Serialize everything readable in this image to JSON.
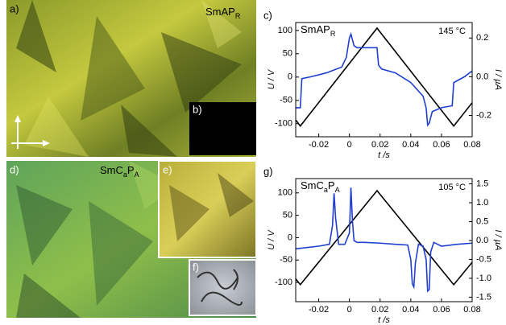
{
  "panels": {
    "a": {
      "label": "a)",
      "sample": [
        "SmAP",
        "R"
      ]
    },
    "b": {
      "label": "b)"
    },
    "d": {
      "label": "d)",
      "sample": [
        "SmC",
        "a",
        "P",
        "A"
      ]
    },
    "e": {
      "label": "e)"
    },
    "f": {
      "label": "f)"
    }
  },
  "chart_data": [
    {
      "type": "line",
      "panel": "c)",
      "sample": [
        "SmAP",
        "R"
      ],
      "annotation": "145 °C",
      "xlabel": "t /s",
      "ylabel": "U / V",
      "y2label": "I / µA",
      "xlim": [
        -0.035,
        0.08
      ],
      "xticks": [
        -0.02,
        0,
        0.02,
        0.04,
        0.06,
        0.08
      ],
      "ylim": [
        -128,
        117
      ],
      "yticks": [
        -100,
        -50,
        0,
        50,
        100
      ],
      "y2lim": [
        -0.31,
        0.28
      ],
      "y2ticks": [
        -0.2,
        {
          "value": 0,
          "label": "0.0"
        },
        0.2
      ],
      "series": [
        {
          "color": "#000000",
          "axis": "y",
          "x": [
            -0.035,
            -0.032,
            0.018,
            0.068,
            0.08
          ],
          "values": [
            -92,
            -105,
            105,
            -105,
            -55
          ]
        },
        {
          "color": "#1f3fd0",
          "axis": "y2",
          "x": [
            -0.035,
            -0.032,
            -0.031,
            -0.025,
            -0.015,
            -0.005,
            -0.002,
            0.0,
            0.001,
            0.003,
            0.005,
            0.01,
            0.018,
            0.019,
            0.021,
            0.03,
            0.04,
            0.048,
            0.05,
            0.051,
            0.052,
            0.054,
            0.06,
            0.067,
            0.068,
            0.075,
            0.08
          ],
          "values": [
            -0.16,
            -0.16,
            -0.01,
            0.0,
            0.02,
            0.05,
            0.1,
            0.2,
            0.22,
            0.16,
            0.15,
            0.15,
            0.15,
            0.06,
            0.04,
            0.02,
            -0.03,
            -0.1,
            -0.16,
            -0.25,
            -0.24,
            -0.18,
            -0.16,
            -0.15,
            -0.03,
            0.0,
            0.03
          ]
        }
      ]
    },
    {
      "type": "line",
      "panel": "g)",
      "sample": [
        "SmC",
        "a",
        "P",
        "A"
      ],
      "annotation": "105 °C",
      "xlabel": "t /s",
      "ylabel": "U / V",
      "y2label": "I / µA",
      "xlim": [
        -0.035,
        0.08
      ],
      "xticks": [
        -0.02,
        0,
        0.02,
        0.04,
        0.06,
        0.08
      ],
      "ylim": [
        -143,
        132
      ],
      "yticks": [
        -100,
        -50,
        0,
        50,
        100
      ],
      "y2lim": [
        -1.62,
        1.64
      ],
      "y2ticks": [
        -1.5,
        {
          "value": -1,
          "label": "-1.0"
        },
        -0.5,
        {
          "value": 0,
          "label": "0.0"
        },
        0.5,
        {
          "value": 1,
          "label": "1.0"
        },
        1.5
      ],
      "series": [
        {
          "color": "#000000",
          "axis": "y",
          "x": [
            -0.035,
            -0.032,
            0.018,
            0.068,
            0.08
          ],
          "values": [
            -92,
            -105,
            105,
            -105,
            -55
          ]
        },
        {
          "color": "#1f3fd0",
          "axis": "y2",
          "x": [
            -0.035,
            -0.02,
            -0.013,
            -0.011,
            -0.01,
            -0.009,
            -0.007,
            -0.003,
            0.0,
            0.001,
            0.002,
            0.003,
            0.005,
            0.01,
            0.02,
            0.03,
            0.038,
            0.04,
            0.041,
            0.042,
            0.043,
            0.045,
            0.048,
            0.05,
            0.051,
            0.052,
            0.053,
            0.055,
            0.06,
            0.07,
            0.08
          ],
          "values": [
            -0.22,
            -0.15,
            -0.1,
            0.4,
            1.25,
            0.6,
            -0.1,
            -0.1,
            0.2,
            1.4,
            0.5,
            0.0,
            -0.05,
            -0.05,
            -0.07,
            -0.1,
            -0.12,
            -0.5,
            -1.15,
            -1.23,
            -0.6,
            -0.1,
            -0.15,
            -0.5,
            -1.34,
            -1.3,
            -0.3,
            -0.05,
            -0.15,
            -0.1,
            -0.07
          ]
        }
      ]
    }
  ]
}
